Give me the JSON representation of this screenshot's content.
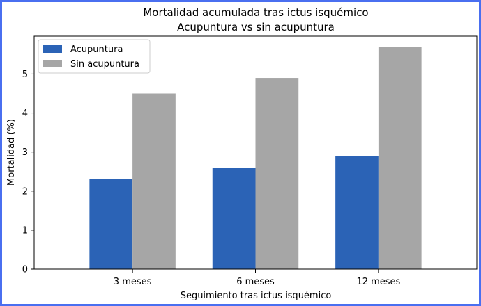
{
  "colors": {
    "frame_border": "#4a6ff0",
    "acupuntura": "#2b63b6",
    "sin_acupuntura": "#a6a6a6"
  },
  "chart_data": {
    "type": "bar",
    "title_line1": "Mortalidad acumulada tras ictus isquémico",
    "title_line2": "Acupuntura vs sin acupuntura",
    "xlabel": "Seguimiento tras ictus isquémico",
    "ylabel": "Mortalidad (%)",
    "categories": [
      "3 meses",
      "6 meses",
      "12 meses"
    ],
    "series": [
      {
        "name": "Acupuntura",
        "color": "#2b63b6",
        "values": [
          2.3,
          2.6,
          2.9
        ]
      },
      {
        "name": "Sin acupuntura",
        "color": "#a6a6a6",
        "values": [
          4.5,
          4.9,
          5.7
        ]
      }
    ],
    "ylim": [
      0,
      5.97
    ],
    "yticks": [
      0,
      1,
      2,
      3,
      4,
      5
    ],
    "grid": false,
    "legend_position": "top-left"
  }
}
